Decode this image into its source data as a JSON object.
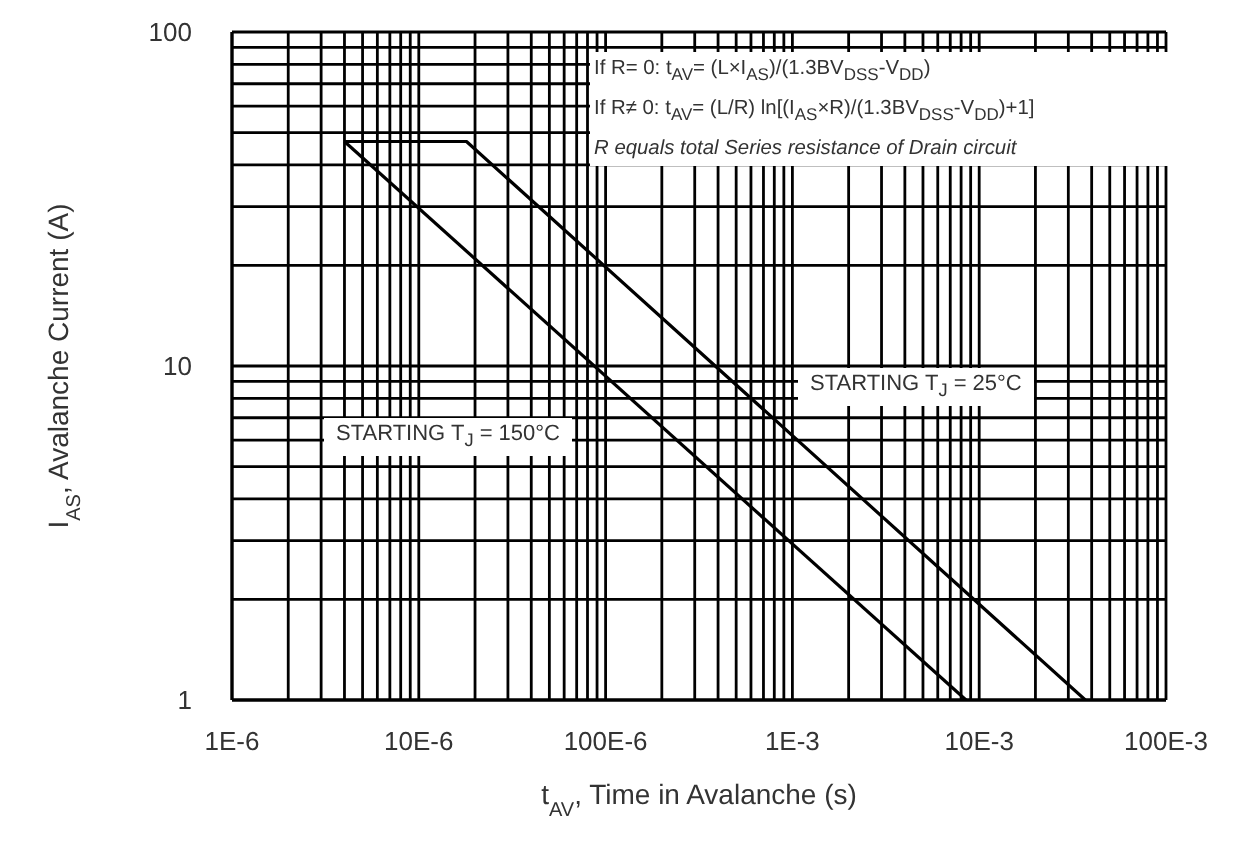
{
  "chart_data": {
    "type": "line",
    "xlabel": "t$_{AV}$, Time in Avalanche (s)",
    "ylabel": "I$_{AS}$, Avalanche Current (A)",
    "log": "xy",
    "grid": true,
    "marker": "none",
    "line_style": "solid",
    "xlim": [
      1e-06,
      0.1
    ],
    "ylim": [
      1,
      100
    ],
    "xticks": [
      {
        "value": 1e-06,
        "label": "1E-6"
      },
      {
        "value": 2e-06,
        "label": null
      },
      {
        "value": 3e-06,
        "label": null
      },
      {
        "value": 4e-06,
        "label": null
      },
      {
        "value": 5e-06,
        "label": null
      },
      {
        "value": 6e-06,
        "label": null
      },
      {
        "value": 7e-06,
        "label": null
      },
      {
        "value": 8e-06,
        "label": null
      },
      {
        "value": 9e-06,
        "label": null
      },
      {
        "value": 1e-05,
        "label": "10E-6"
      },
      {
        "value": 2e-05,
        "label": null
      },
      {
        "value": 3e-05,
        "label": null
      },
      {
        "value": 4e-05,
        "label": null
      },
      {
        "value": 5e-05,
        "label": null
      },
      {
        "value": 6e-05,
        "label": null
      },
      {
        "value": 7e-05,
        "label": null
      },
      {
        "value": 8e-05,
        "label": null
      },
      {
        "value": 9e-05,
        "label": null
      },
      {
        "value": 0.0001,
        "label": "100E-6"
      },
      {
        "value": 0.0002,
        "label": null
      },
      {
        "value": 0.0003,
        "label": null
      },
      {
        "value": 0.0004,
        "label": null
      },
      {
        "value": 0.0005,
        "label": null
      },
      {
        "value": 0.0006,
        "label": null
      },
      {
        "value": 0.0007,
        "label": null
      },
      {
        "value": 0.0008,
        "label": null
      },
      {
        "value": 0.0009,
        "label": null
      },
      {
        "value": 0.001,
        "label": "1E-3"
      },
      {
        "value": 0.002,
        "label": null
      },
      {
        "value": 0.003,
        "label": null
      },
      {
        "value": 0.004,
        "label": null
      },
      {
        "value": 0.005,
        "label": null
      },
      {
        "value": 0.006,
        "label": null
      },
      {
        "value": 0.007,
        "label": null
      },
      {
        "value": 0.008,
        "label": null
      },
      {
        "value": 0.009,
        "label": null
      },
      {
        "value": 0.01,
        "label": "10E-3"
      },
      {
        "value": 0.02,
        "label": null
      },
      {
        "value": 0.03,
        "label": null
      },
      {
        "value": 0.04,
        "label": null
      },
      {
        "value": 0.05,
        "label": null
      },
      {
        "value": 0.06,
        "label": null
      },
      {
        "value": 0.07,
        "label": null
      },
      {
        "value": 0.08,
        "label": null
      },
      {
        "value": 0.09,
        "label": null
      },
      {
        "value": 0.1,
        "label": "100E-3"
      }
    ],
    "yticks": [
      1,
      {
        "value": 2,
        "label": null
      },
      {
        "value": 3,
        "label": null
      },
      {
        "value": 4,
        "label": null
      },
      {
        "value": 5,
        "label": null
      },
      {
        "value": 6,
        "label": null
      },
      {
        "value": 7,
        "label": null
      },
      {
        "value": 8,
        "label": null
      },
      {
        "value": 9,
        "label": null
      },
      10,
      {
        "value": 20,
        "label": null
      },
      {
        "value": 30,
        "label": null
      },
      {
        "value": 40,
        "label": null
      },
      {
        "value": 50,
        "label": null
      },
      {
        "value": 60,
        "label": null
      },
      {
        "value": 70,
        "label": null
      },
      {
        "value": 80,
        "label": null
      },
      {
        "value": 90,
        "label": null
      },
      100
    ],
    "series": [
      {
        "name": "STARTING T$_{J}$ = 150°C",
        "color": "#000000",
        "x": [
          4e-06,
          0.0085
        ],
        "values": [
          47,
          1
        ]
      },
      {
        "name": "STARTING T$_{J}$ = 25°C",
        "color": "#000000",
        "x": [
          4e-06,
          1.8e-05,
          0.037
        ],
        "values": [
          47,
          47,
          1
        ]
      }
    ],
    "annotations": [
      "If R= 0: t$_{AV}$= (L×I$_{AS}$)/(1.3BV$_{DSS}$-V$_{DD}$)",
      "If R≠ 0: t$_{AV}$= (L/R) ln[(I$_{AS}$×R)/(1.3BV$_{DSS}$-V$_{DD}$)+1]",
      "R equals total Series resistance of Drain circuit"
    ]
  }
}
